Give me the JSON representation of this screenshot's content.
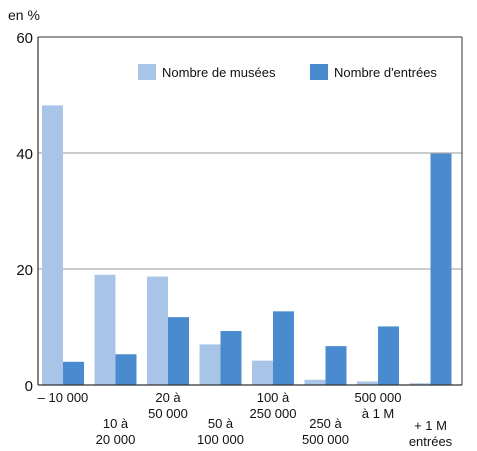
{
  "chart_data": {
    "type": "bar",
    "ylabel": "en %",
    "ylim": [
      0,
      60
    ],
    "yticks": [
      "0",
      "20",
      "40",
      "60"
    ],
    "grid": true,
    "legend_position": "top-right",
    "categories": [
      [
        "– 10 000"
      ],
      [
        "10 à",
        "20 000"
      ],
      [
        "20 à",
        "50 000"
      ],
      [
        "50 à",
        "100 000"
      ],
      [
        "100 à",
        "250 000"
      ],
      [
        "250 à",
        "500 000"
      ],
      [
        "500 000",
        "à 1 M"
      ],
      [
        "+ 1 M",
        "entrées"
      ]
    ],
    "series": [
      {
        "name": "Nombre de musées",
        "color": "#a8c4e6",
        "values": [
          48.2,
          19.0,
          18.7,
          7.0,
          4.2,
          0.9,
          0.6,
          0.3
        ]
      },
      {
        "name": "Nombre d'entrées",
        "color": "#4a8bd0",
        "values": [
          4.0,
          5.3,
          11.7,
          9.3,
          12.7,
          6.7,
          10.1,
          39.9
        ]
      }
    ]
  }
}
